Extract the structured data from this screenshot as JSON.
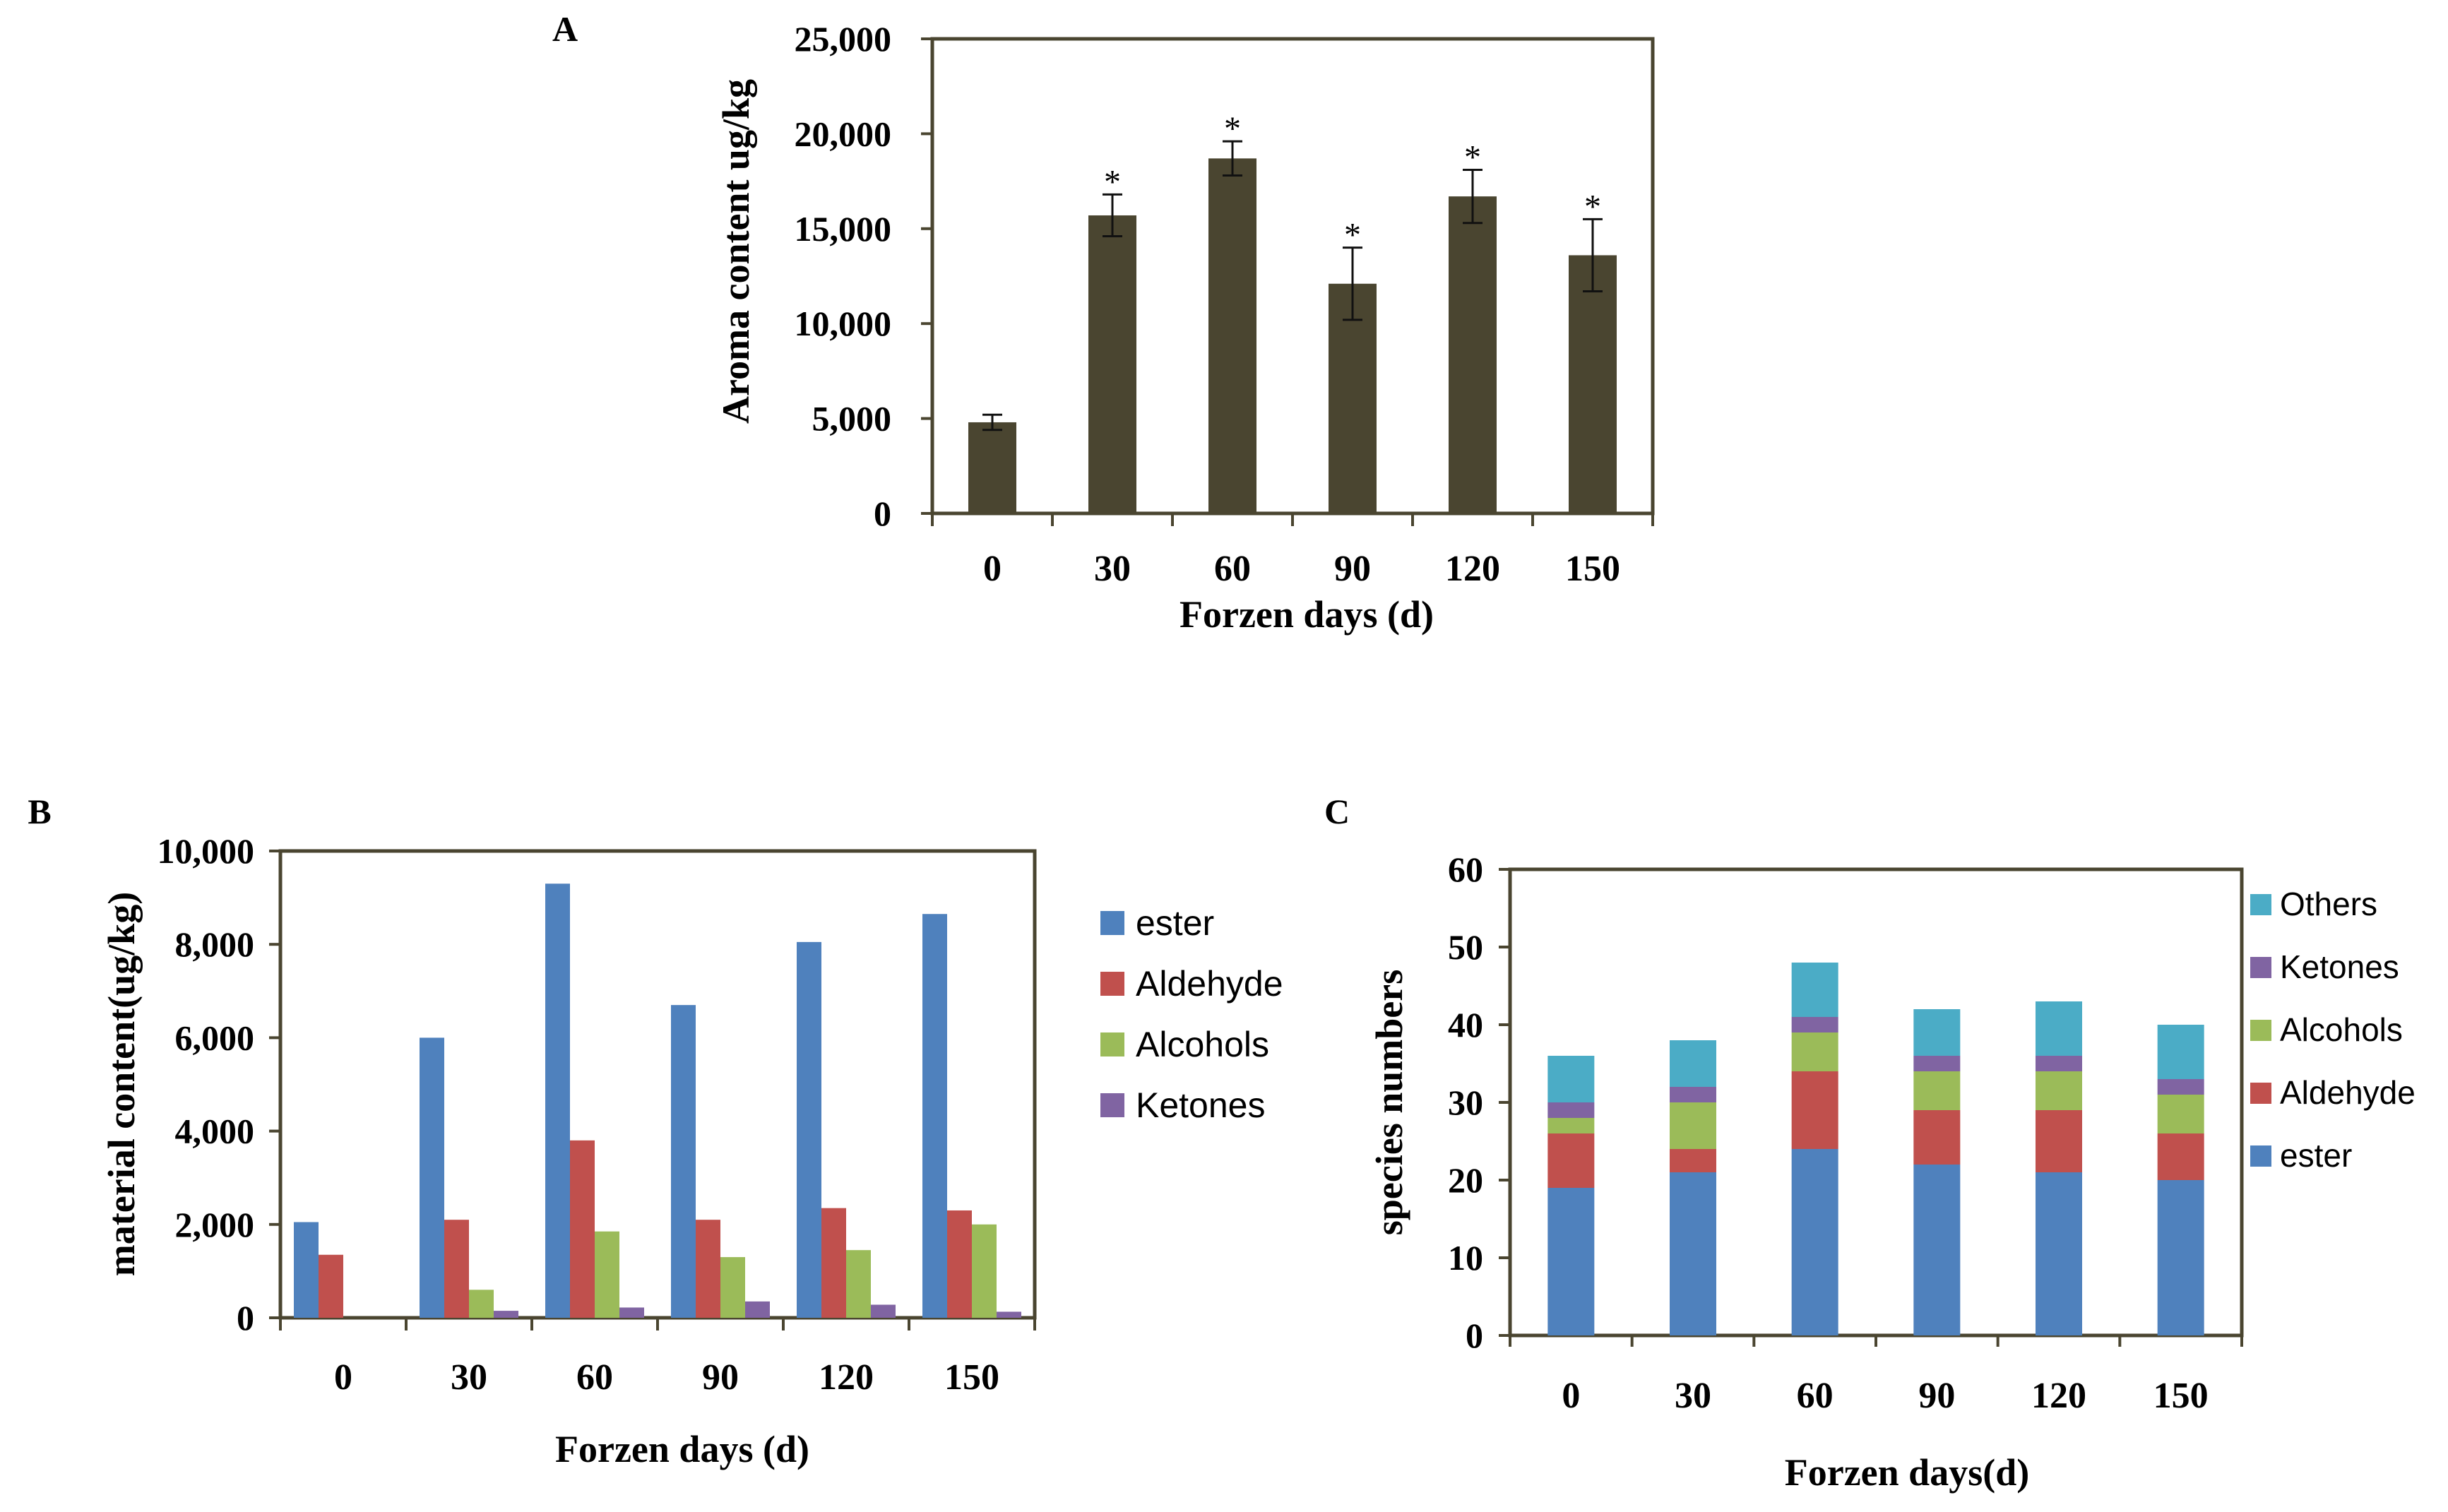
{
  "chart_data": [
    {
      "panel": "A",
      "type": "bar",
      "categories": [
        "0",
        "30",
        "60",
        "90",
        "120",
        "150"
      ],
      "values": [
        4800,
        15700,
        18700,
        12100,
        16700,
        13600
      ],
      "error": [
        400,
        1100,
        900,
        1900,
        1400,
        1900
      ],
      "annotations": [
        "",
        "*",
        "*",
        "*",
        "*",
        "*"
      ],
      "title": "",
      "xlabel": "Forzen days (d)",
      "ylabel": "Aroma content  ug/kg",
      "ylim": [
        0,
        25000
      ],
      "yticks": [
        0,
        5000,
        10000,
        15000,
        20000,
        25000
      ],
      "ytick_labels": [
        "0",
        "5,000",
        "10,000",
        "15,000",
        "20,000",
        "25,000"
      ],
      "grid": false,
      "color": "#4a4530"
    },
    {
      "panel": "B",
      "type": "bar",
      "categories": [
        "0",
        "30",
        "60",
        "90",
        "120",
        "150"
      ],
      "series": [
        {
          "name": "ester",
          "values": [
            2050,
            6000,
            9300,
            6700,
            8050,
            8650
          ],
          "color": "#4f81bd"
        },
        {
          "name": "Aldehyde",
          "values": [
            1350,
            2100,
            3800,
            2100,
            2350,
            2300
          ],
          "color": "#c0504d"
        },
        {
          "name": "Alcohols",
          "values": [
            0,
            600,
            1850,
            1300,
            1450,
            2000
          ],
          "color": "#9bbb59"
        },
        {
          "name": "Ketones",
          "values": [
            0,
            150,
            220,
            350,
            280,
            130
          ],
          "color": "#8064a2"
        }
      ],
      "title": "",
      "xlabel": "Forzen days (d)",
      "ylabel": "material content(ug/kg)",
      "ylim": [
        0,
        10000
      ],
      "yticks": [
        0,
        2000,
        4000,
        6000,
        8000,
        10000
      ],
      "ytick_labels": [
        "0",
        "2,000",
        "4,000",
        "6,000",
        "8,000",
        "10,000"
      ],
      "grid": false,
      "legend": "right"
    },
    {
      "panel": "C",
      "type": "bar",
      "stacked": true,
      "categories": [
        "0",
        "30",
        "60",
        "90",
        "120",
        "150"
      ],
      "series": [
        {
          "name": "ester",
          "values": [
            19,
            21,
            24,
            22,
            21,
            20
          ],
          "color": "#4f81bd"
        },
        {
          "name": "Aldehyde",
          "values": [
            7,
            3,
            10,
            7,
            8,
            6
          ],
          "color": "#c0504d"
        },
        {
          "name": "Alcohols",
          "values": [
            2,
            6,
            5,
            5,
            5,
            5
          ],
          "color": "#9bbb59"
        },
        {
          "name": "Ketones",
          "values": [
            2,
            2,
            2,
            2,
            2,
            2
          ],
          "color": "#8064a2"
        },
        {
          "name": "Others",
          "values": [
            6,
            6,
            7,
            6,
            7,
            7
          ],
          "color": "#4bacc6"
        }
      ],
      "legend_order": [
        "Others",
        "Ketones",
        "Alcohols",
        "Aldehyde",
        "ester"
      ],
      "title": "",
      "xlabel": "Forzen days(d)",
      "ylabel": "species numbers",
      "ylim": [
        0,
        60
      ],
      "yticks": [
        0,
        10,
        20,
        30,
        40,
        50,
        60
      ],
      "ytick_labels": [
        "0",
        "10",
        "20",
        "30",
        "40",
        "50",
        "60"
      ],
      "grid": false,
      "legend": "right"
    }
  ],
  "axis_color": "#4a4530"
}
